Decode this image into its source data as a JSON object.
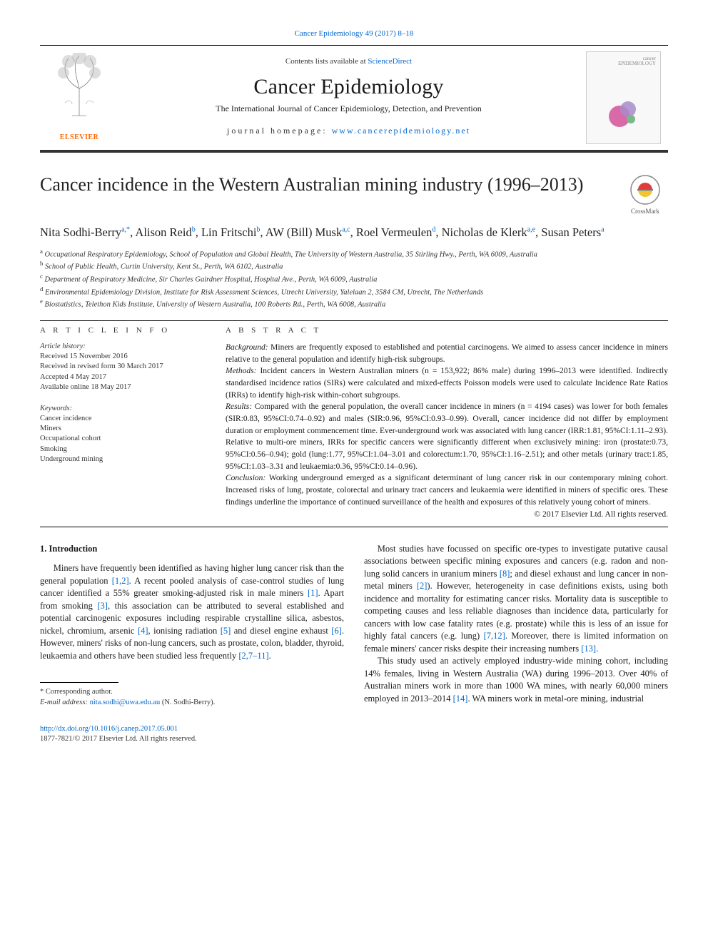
{
  "page_header_link": {
    "journal": "Cancer Epidemiology",
    "volume": "49 (2017) 8–18"
  },
  "header": {
    "contents_prefix": "Contents lists available at ",
    "contents_link": "ScienceDirect",
    "journal_name": "Cancer Epidemiology",
    "journal_subtitle": "The International Journal of Cancer Epidemiology, Detection, and Prevention",
    "homepage_label": "journal homepage: ",
    "homepage_url": "www.cancerepidemiology.net",
    "publisher_logo": "ELSEVIER",
    "cover_logo_text": "cancer\nEPIDEMIOLOGY",
    "colors": {
      "elsevier_orange": "#ff6600",
      "link_blue": "#0066cc",
      "rule_dark": "#000000",
      "cover_pink": "#d96aa8",
      "cover_lilac": "#a88cc9",
      "cover_green": "#7ab88a"
    }
  },
  "crossmark": {
    "label": "CrossMark"
  },
  "article": {
    "title": "Cancer incidence in the Western Australian mining industry (1996–2013)",
    "authors_html": "Nita Sodhi-Berry<sup>a,*</sup>, Alison Reid<sup>b</sup>, Lin Fritschi<sup>b</sup>, AW (Bill) Musk<sup>a,c</sup>, Roel Vermeulen<sup>d</sup>, Nicholas de Klerk<sup>a,e</sup>, Susan Peters<sup>a</sup>",
    "affiliations": [
      {
        "key": "a",
        "text": "Occupational Respiratory Epidemiology, School of Population and Global Health, The University of Western Australia, 35 Stirling Hwy., Perth, WA 6009, Australia"
      },
      {
        "key": "b",
        "text": "School of Public Health, Curtin University, Kent St., Perth, WA 6102, Australia"
      },
      {
        "key": "c",
        "text": "Department of Respiratory Medicine, Sir Charles Gairdner Hospital, Hospital Ave., Perth, WA 6009, Australia"
      },
      {
        "key": "d",
        "text": "Environmental Epidemiology Division, Institute for Risk Assessment Sciences, Utrecht University, Yalelaan 2, 3584 CM, Utrecht, The Netherlands"
      },
      {
        "key": "e",
        "text": "Biostatistics, Telethon Kids Institute, University of Western Australia, 100 Roberts Rd., Perth, WA 6008, Australia"
      }
    ]
  },
  "article_info": {
    "section_label": "A R T I C L E   I N F O",
    "history_label": "Article history:",
    "history": [
      "Received 15 November 2016",
      "Received in revised form 30 March 2017",
      "Accepted 4 May 2017",
      "Available online 18 May 2017"
    ],
    "keywords_label": "Keywords:",
    "keywords": [
      "Cancer incidence",
      "Miners",
      "Occupational cohort",
      "Smoking",
      "Underground mining"
    ]
  },
  "abstract": {
    "section_label": "A B S T R A C T",
    "segments": [
      {
        "label": "Background:",
        "text": " Miners are frequently exposed to established and potential carcinogens. We aimed to assess cancer incidence in miners relative to the general population and identify high-risk subgroups."
      },
      {
        "label": "Methods:",
        "text": " Incident cancers in Western Australian miners (n = 153,922; 86% male) during 1996–2013 were identified. Indirectly standardised incidence ratios (SIRs) were calculated and mixed-effects Poisson models were used to calculate Incidence Rate Ratios (IRRs) to identify high-risk within-cohort subgroups."
      },
      {
        "label": "Results:",
        "text": " Compared with the general population, the overall cancer incidence in miners (n = 4194 cases) was lower for both females (SIR:0.83, 95%CI:0.74–0.92) and males (SIR:0.96, 95%CI:0.93–0.99). Overall, cancer incidence did not differ by employment duration or employment commencement time. Ever-underground work was associated with lung cancer (IRR:1.81, 95%CI:1.11–2.93). Relative to multi-ore miners, IRRs for specific cancers were significantly different when exclusively mining: iron (prostate:0.73, 95%CI:0.56–0.94); gold (lung:1.77, 95%CI:1.04–3.01 and colorectum:1.70, 95%CI:1.16–2.51); and other metals (urinary tract:1.85, 95%CI:1.03–3.31 and leukaemia:0.36, 95%CI:0.14–0.96)."
      },
      {
        "label": "Conclusion:",
        "text": " Working underground emerged as a significant determinant of lung cancer risk in our contemporary mining cohort. Increased risks of lung, prostate, colorectal and urinary tract cancers and leukaemia were identified in miners of specific ores. These findings underline the importance of continued surveillance of the health and exposures of this relatively young cohort of miners."
      }
    ],
    "copyright": "© 2017 Elsevier Ltd. All rights reserved."
  },
  "body": {
    "intro_heading": "1. Introduction",
    "left_para": {
      "pre": "Miners have frequently been identified as having higher lung cancer risk than the general population ",
      "r1": "[1,2]",
      "m1": ". A recent pooled analysis of case-control studies of lung cancer identified a 55% greater smoking-adjusted risk in male miners ",
      "r2": "[1]",
      "m2": ". Apart from smoking ",
      "r3": "[3]",
      "m3": ", this association can be attributed to several established and potential carcinogenic exposures including respirable crystalline silica, asbestos, nickel, chromium, arsenic ",
      "r4": "[4]",
      "m4": ", ionising radiation ",
      "r5": "[5]",
      "m5": " and diesel engine exhaust ",
      "r6": "[6]",
      "m6": ". However, miners' risks of non-lung cancers, such as prostate, colon, bladder, thyroid, leukaemia and others have been studied less frequently ",
      "r7": "[2,7–11]",
      "post": "."
    },
    "right_para1": {
      "pre": "Most studies have focussed on specific ore-types to investigate putative causal associations between specific mining exposures and cancers (e.g. radon and non-lung solid cancers in uranium miners ",
      "r1": "[8]",
      "m1": "; and diesel exhaust and lung cancer in non-metal miners ",
      "r2": "[2]",
      "m2": "). However, heterogeneity in case definitions exists, using both incidence and mortality for estimating cancer risks. Mortality data is susceptible to competing causes and less reliable diagnoses than incidence data, particularly for cancers with low case fatality rates (e.g. prostate) while this is less of an issue for highly fatal cancers (e.g. lung) ",
      "r3": "[7,12]",
      "m3": ". Moreover, there is limited information on female miners' cancer risks despite their increasing numbers ",
      "r4": "[13]",
      "post": "."
    },
    "right_para2": {
      "pre": "This study used an actively employed industry-wide mining cohort, including 14% females, living in Western Australia (WA) during 1996–2013. Over 40% of Australian miners work in more than 1000 WA mines, with nearly 60,000 miners employed in 2013–2014 ",
      "r1": "[14]",
      "post": ". WA miners work in metal-ore mining, industrial"
    }
  },
  "footnotes": {
    "corresponding": "Corresponding author.",
    "email_label": "E-mail address: ",
    "email": "nita.sodhi@uwa.edu.au",
    "email_suffix": " (N. Sodhi-Berry)."
  },
  "doi": {
    "url": "http://dx.doi.org/10.1016/j.canep.2017.05.001",
    "issn_line": "1877-7821/© 2017 Elsevier Ltd. All rights reserved."
  }
}
